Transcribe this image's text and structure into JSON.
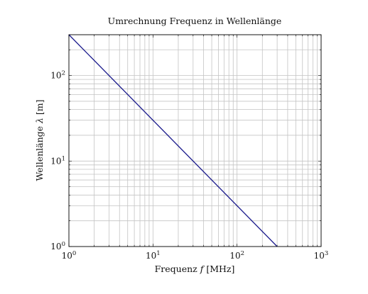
{
  "chart_data": {
    "type": "line",
    "title": "Umrechnung Frequenz in Wellenlänge",
    "xlabel_parts": [
      "Frequenz ",
      "f",
      " [MHz]"
    ],
    "ylabel_parts": [
      "Wellenlänge ",
      "λ",
      " [m]"
    ],
    "xscale": "log",
    "yscale": "log",
    "xlim": [
      1,
      1000
    ],
    "ylim": [
      1,
      300
    ],
    "x_ticks": [
      {
        "base": "10",
        "exp": "0",
        "value": 1
      },
      {
        "base": "10",
        "exp": "1",
        "value": 10
      },
      {
        "base": "10",
        "exp": "2",
        "value": 100
      },
      {
        "base": "10",
        "exp": "3",
        "value": 1000
      }
    ],
    "y_ticks": [
      {
        "base": "10",
        "exp": "0",
        "value": 1
      },
      {
        "base": "10",
        "exp": "1",
        "value": 10
      },
      {
        "base": "10",
        "exp": "2",
        "value": 100
      }
    ],
    "grid": "major and minor",
    "series": [
      {
        "color": "#1a1a8c",
        "points": [
          [
            1,
            300
          ],
          [
            300,
            1
          ]
        ]
      }
    ]
  }
}
